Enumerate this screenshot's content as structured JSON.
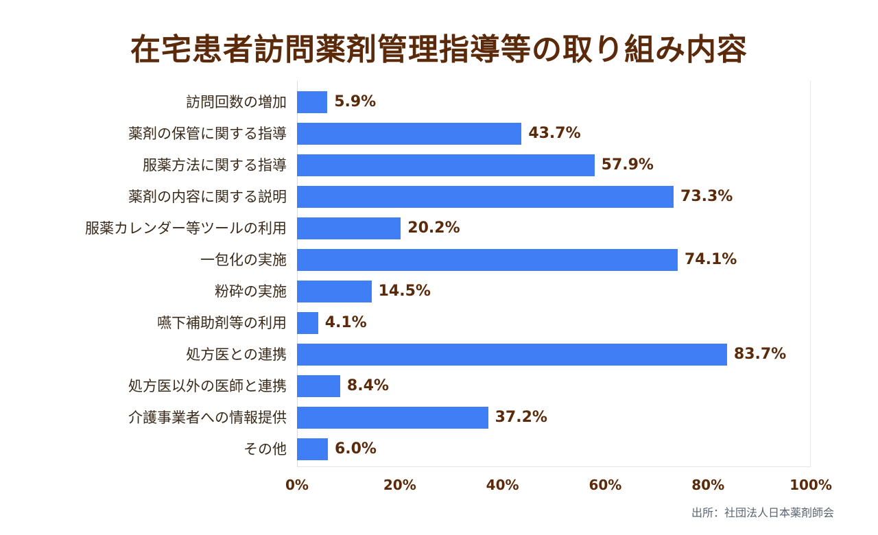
{
  "title": "在宅患者訪問薬剤管理指導等の取り組み内容",
  "source": "出所：社団法人日本薬剤師会",
  "colors": {
    "bar": "#3f7ef5",
    "text_accent": "#5a2a0a",
    "label": "#3a2a1a"
  },
  "axis": {
    "ticks": [
      "0%",
      "20%",
      "40%",
      "60%",
      "80%",
      "100%"
    ]
  },
  "chart_data": {
    "type": "bar",
    "orientation": "horizontal",
    "title": "在宅患者訪問薬剤管理指導等の取り組み内容",
    "xlabel": "",
    "ylabel": "",
    "xlim": [
      0,
      100
    ],
    "grid": false,
    "categories": [
      "訪問回数の増加",
      "薬剤の保管に関する指導",
      "服薬方法に関する指導",
      "薬剤の内容に関する説明",
      "服薬カレンダー等ツールの利用",
      "一包化の実施",
      "粉砕の実施",
      "嚥下補助剤等の利用",
      "処方医との連携",
      "処方医以外の医師と連携",
      "介護事業者への情報提供",
      "その他"
    ],
    "values": [
      5.9,
      43.7,
      57.9,
      73.3,
      20.2,
      74.1,
      14.5,
      4.1,
      83.7,
      8.4,
      37.2,
      6.0
    ],
    "value_labels": [
      "5.9%",
      "43.7%",
      "57.9%",
      "73.3%",
      "20.2%",
      "74.1%",
      "14.5%",
      "4.1%",
      "83.7%",
      "8.4%",
      "37.2%",
      "6.0%"
    ],
    "tick_labels": [
      "0%",
      "20%",
      "40%",
      "60%",
      "80%",
      "100%"
    ],
    "source": "出所：社団法人日本薬剤師会"
  }
}
